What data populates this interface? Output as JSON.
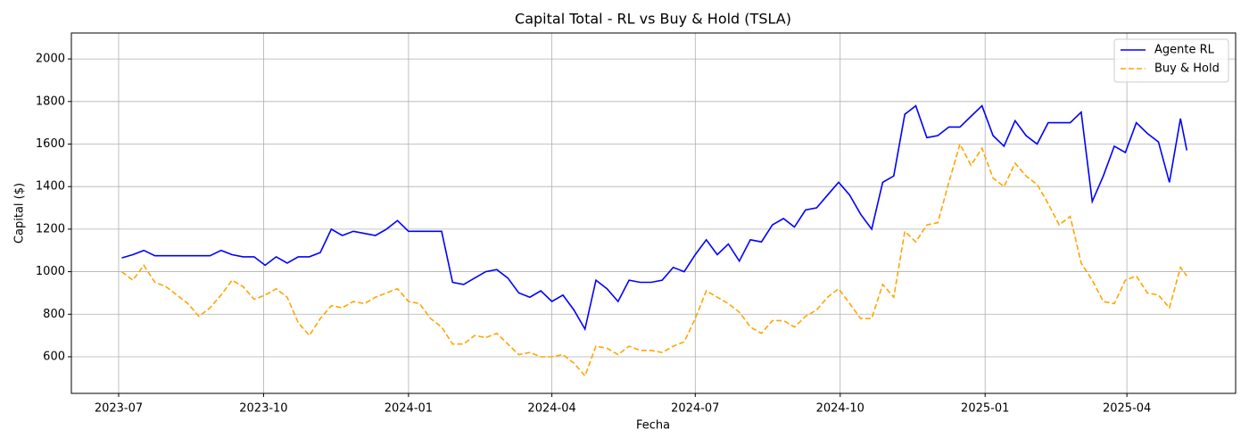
{
  "chart_data": {
    "type": "line",
    "title": "Capital Total - RL vs Buy & Hold (TSLA)",
    "xlabel": "Fecha",
    "ylabel": "Capital ($)",
    "x": [
      "2023-07-03",
      "2023-07-10",
      "2023-07-17",
      "2023-07-24",
      "2023-07-31",
      "2023-08-07",
      "2023-08-14",
      "2023-08-21",
      "2023-08-28",
      "2023-09-04",
      "2023-09-11",
      "2023-09-18",
      "2023-09-25",
      "2023-10-02",
      "2023-10-09",
      "2023-10-16",
      "2023-10-23",
      "2023-10-30",
      "2023-11-06",
      "2023-11-13",
      "2023-11-20",
      "2023-11-27",
      "2023-12-04",
      "2023-12-11",
      "2023-12-18",
      "2023-12-25",
      "2024-01-01",
      "2024-01-08",
      "2024-01-15",
      "2024-01-22",
      "2024-01-29",
      "2024-02-05",
      "2024-02-12",
      "2024-02-19",
      "2024-02-26",
      "2024-03-04",
      "2024-03-11",
      "2024-03-18",
      "2024-03-25",
      "2024-04-01",
      "2024-04-08",
      "2024-04-15",
      "2024-04-22",
      "2024-04-29",
      "2024-05-06",
      "2024-05-13",
      "2024-05-20",
      "2024-05-27",
      "2024-06-03",
      "2024-06-10",
      "2024-06-17",
      "2024-06-24",
      "2024-07-01",
      "2024-07-08",
      "2024-07-15",
      "2024-07-22",
      "2024-07-29",
      "2024-08-05",
      "2024-08-12",
      "2024-08-19",
      "2024-08-26",
      "2024-09-02",
      "2024-09-09",
      "2024-09-16",
      "2024-09-23",
      "2024-09-30",
      "2024-10-07",
      "2024-10-14",
      "2024-10-21",
      "2024-10-28",
      "2024-11-04",
      "2024-11-11",
      "2024-11-18",
      "2024-11-25",
      "2024-12-02",
      "2024-12-09",
      "2024-12-16",
      "2024-12-23",
      "2024-12-30",
      "2025-01-06",
      "2025-01-13",
      "2025-01-20",
      "2025-01-27",
      "2025-02-03",
      "2025-02-10",
      "2025-02-17",
      "2025-02-24",
      "2025-03-03",
      "2025-03-10",
      "2025-03-17",
      "2025-03-24",
      "2025-03-31",
      "2025-04-07",
      "2025-04-14",
      "2025-04-21",
      "2025-04-28",
      "2025-05-05",
      "2025-05-09"
    ],
    "series": [
      {
        "name": "Agente RL",
        "color": "#0000ff",
        "dash": false,
        "values": [
          1065,
          1080,
          1100,
          1075,
          1075,
          1075,
          1075,
          1075,
          1075,
          1100,
          1080,
          1070,
          1070,
          1030,
          1070,
          1040,
          1070,
          1070,
          1090,
          1200,
          1170,
          1190,
          1180,
          1170,
          1200,
          1240,
          1190,
          1190,
          1190,
          1190,
          950,
          940,
          970,
          1000,
          1010,
          970,
          900,
          880,
          910,
          860,
          890,
          820,
          730,
          960,
          920,
          860,
          960,
          950,
          950,
          960,
          1020,
          1000,
          1080,
          1150,
          1080,
          1130,
          1050,
          1150,
          1140,
          1220,
          1250,
          1210,
          1290,
          1300,
          1360,
          1420,
          1360,
          1270,
          1200,
          1420,
          1450,
          1740,
          1780,
          1630,
          1640,
          1680,
          1680,
          1730,
          1780,
          1640,
          1590,
          1710,
          1640,
          1600,
          1700,
          1700,
          1700,
          1750,
          1330,
          1450,
          1590,
          1560,
          1700,
          1650,
          1610,
          1420,
          1720,
          1570
        ]
      },
      {
        "name": "Buy & Hold",
        "color": "#ffa500",
        "dash": true,
        "values": [
          1000,
          960,
          1030,
          950,
          930,
          890,
          850,
          790,
          830,
          890,
          960,
          930,
          870,
          890,
          920,
          880,
          760,
          700,
          780,
          840,
          830,
          860,
          850,
          880,
          900,
          920,
          860,
          850,
          780,
          740,
          660,
          660,
          700,
          690,
          710,
          660,
          610,
          620,
          600,
          600,
          610,
          570,
          510,
          650,
          640,
          610,
          650,
          630,
          630,
          620,
          650,
          670,
          780,
          910,
          880,
          850,
          810,
          740,
          710,
          770,
          770,
          740,
          790,
          820,
          880,
          920,
          850,
          780,
          780,
          940,
          880,
          1190,
          1140,
          1220,
          1230,
          1420,
          1600,
          1500,
          1580,
          1440,
          1400,
          1510,
          1450,
          1410,
          1320,
          1220,
          1260,
          1040,
          960,
          860,
          850,
          960,
          980,
          900,
          890,
          830,
          1020,
          980
        ]
      }
    ],
    "xlim": [
      "2023-06-01",
      "2025-06-09"
    ],
    "xticks": [
      "2023-07",
      "2023-10",
      "2024-01",
      "2024-04",
      "2024-07",
      "2024-10",
      "2025-01",
      "2025-04"
    ],
    "ylim": [
      428,
      2122
    ],
    "yticks": [
      600,
      800,
      1000,
      1200,
      1400,
      1600,
      1800,
      2000
    ],
    "grid": true,
    "legend": "upper right"
  }
}
